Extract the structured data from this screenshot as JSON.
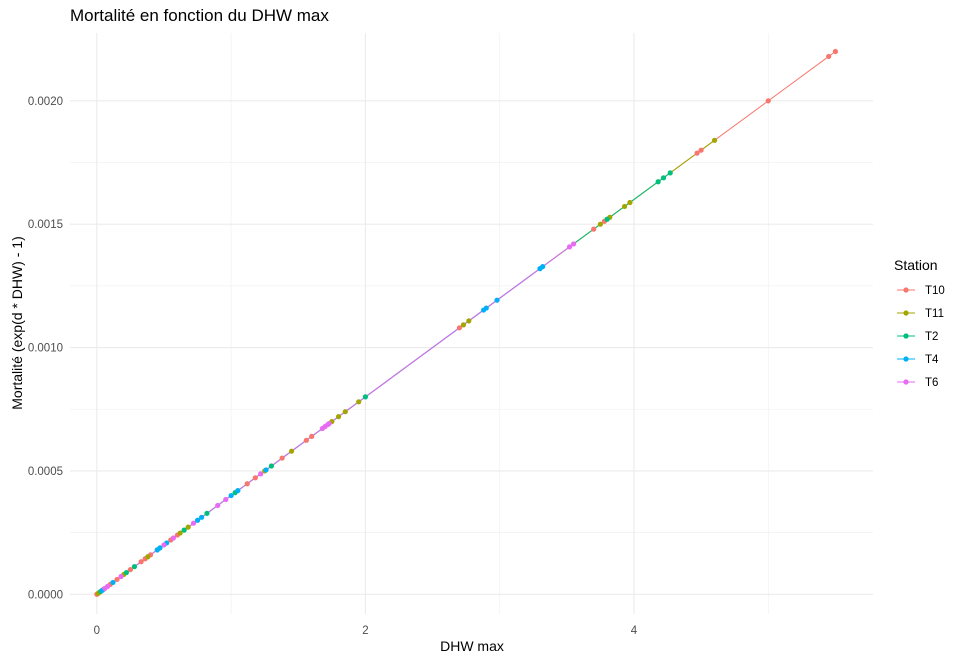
{
  "chart_data": {
    "type": "line",
    "title": "Mortalité en fonction du DHW max",
    "xlabel": "DHW max",
    "ylabel": "Mortalité (exp(d * DHW) - 1)",
    "xlim": [
      -0.2,
      5.78
    ],
    "ylim": [
      -8e-05,
      0.002275
    ],
    "x_ticks": [
      0,
      2,
      4
    ],
    "x_tick_labels": [
      "0",
      "2",
      "4"
    ],
    "y_ticks": [
      0.0,
      0.0005,
      0.001,
      0.0015,
      0.002
    ],
    "y_tick_labels": [
      "0.0000",
      "0.0005",
      "0.0010",
      "0.0015",
      "0.0020"
    ],
    "grid": true,
    "legend_title": "Station",
    "legend_position": "right",
    "series": [
      {
        "name": "T10",
        "color": "#F8766D",
        "x": [
          0.0,
          0.02,
          0.05,
          0.1,
          0.15,
          0.25,
          0.33,
          0.36,
          0.4,
          0.45,
          0.55,
          0.6,
          1.12,
          1.18,
          1.38,
          1.56,
          1.6,
          2.7,
          3.7,
          3.78,
          4.47,
          4.5,
          5.0,
          5.45,
          5.5
        ],
        "y": [
          0.0,
          8e-06,
          2e-05,
          4e-05,
          6e-05,
          0.0001,
          0.000132,
          0.000144,
          0.00016,
          0.00018,
          0.00022,
          0.00024,
          0.000448,
          0.000472,
          0.000552,
          0.000624,
          0.00064,
          0.00108,
          0.00148,
          0.001512,
          0.001788,
          0.0018,
          0.002,
          0.00218,
          0.0022
        ]
      },
      {
        "name": "T11",
        "color": "#A3A500",
        "x": [
          0.01,
          0.2,
          0.38,
          0.62,
          0.68,
          1.25,
          1.45,
          1.75,
          1.8,
          1.85,
          1.95,
          2.73,
          2.77,
          3.75,
          3.82,
          3.93,
          3.97,
          4.6
        ],
        "y": [
          4e-06,
          8e-05,
          0.000152,
          0.000248,
          0.000272,
          0.0005,
          0.00058,
          0.0007,
          0.00072,
          0.00074,
          0.00078,
          0.001092,
          0.001108,
          0.0015,
          0.001528,
          0.001572,
          0.001588,
          0.00184
        ]
      },
      {
        "name": "T2",
        "color": "#00BF7D",
        "x": [
          0.03,
          0.22,
          0.28,
          0.65,
          0.82,
          1.03,
          1.3,
          2.0,
          3.8,
          4.18,
          4.22,
          4.27
        ],
        "y": [
          1.2e-05,
          8.8e-05,
          0.000112,
          0.00026,
          0.000328,
          0.000412,
          0.00052,
          0.0008,
          0.00152,
          0.001672,
          0.001688,
          0.001708
        ]
      },
      {
        "name": "T4",
        "color": "#00B0F6",
        "x": [
          0.04,
          0.12,
          0.45,
          0.47,
          0.52,
          0.75,
          0.78,
          1.0,
          1.05,
          1.26,
          2.88,
          2.9,
          2.98,
          3.3,
          3.32
        ],
        "y": [
          1.6e-05,
          4.8e-05,
          0.00018,
          0.000188,
          0.000208,
          0.0003,
          0.000312,
          0.0004,
          0.00042,
          0.000504,
          0.001152,
          0.00116,
          0.001192,
          0.00132,
          0.001328
        ]
      },
      {
        "name": "T6",
        "color": "#E76BF3",
        "x": [
          0.06,
          0.08,
          0.18,
          0.5,
          0.57,
          0.72,
          0.9,
          0.96,
          1.22,
          1.68,
          1.7,
          1.72,
          1.73,
          3.52,
          3.55
        ],
        "y": [
          2.4e-05,
          3.2e-05,
          7.2e-05,
          0.0002,
          0.000228,
          0.000288,
          0.00036,
          0.000384,
          0.000488,
          0.000672,
          0.00068,
          0.000688,
          0.000692,
          0.001408,
          0.00142
        ]
      }
    ]
  }
}
